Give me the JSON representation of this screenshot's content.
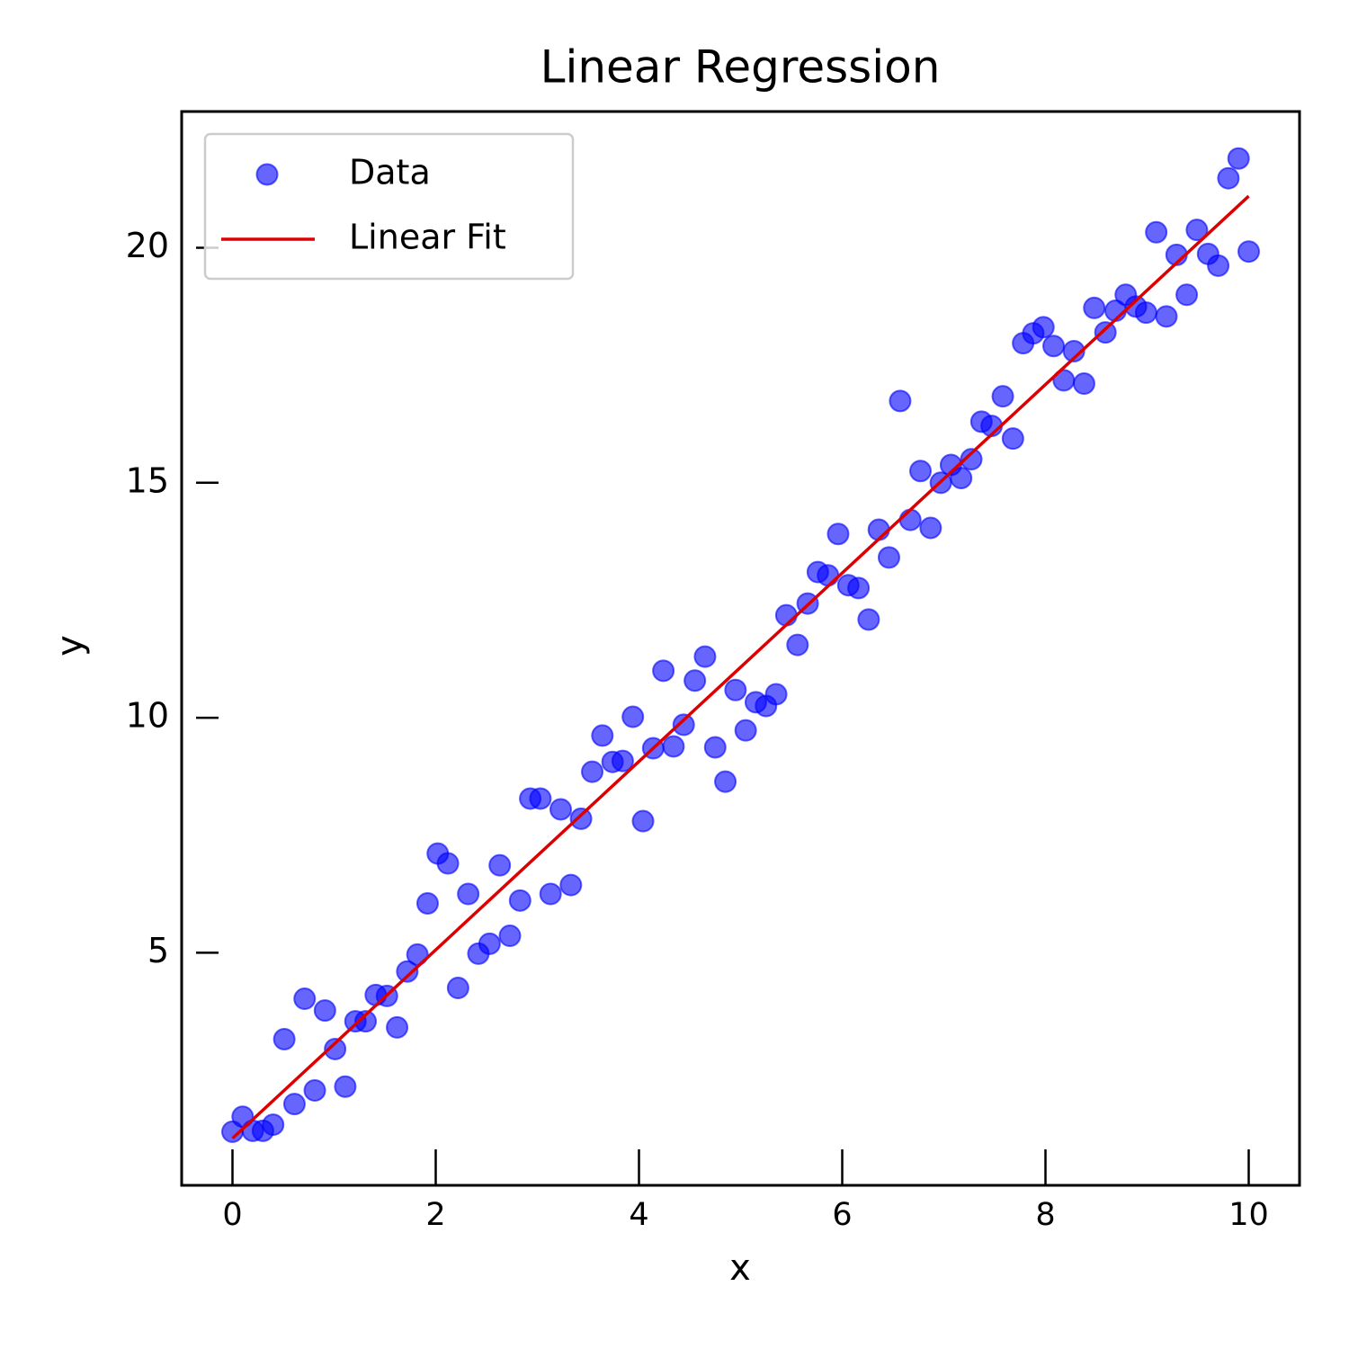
{
  "chart_data": {
    "type": "scatter",
    "title": "Linear Regression",
    "x_label": "x",
    "y_label": "y",
    "xlim": [
      -0.5,
      10.5
    ],
    "ylim": [
      0.05,
      22.9
    ],
    "xticks": [
      0,
      2,
      4,
      6,
      8,
      10
    ],
    "yticks": [
      5,
      10,
      15,
      20
    ],
    "legend": "upper left",
    "grid": false,
    "series": [
      {
        "name": "Data",
        "type": "scatter",
        "color": "#0000ff",
        "x": [
          0,
          0.1,
          0.2,
          0.3,
          0.4,
          0.51,
          0.61,
          0.71,
          0.81,
          0.91,
          1.01,
          1.11,
          1.21,
          1.31,
          1.41,
          1.52,
          1.62,
          1.72,
          1.82,
          1.92,
          2.02,
          2.12,
          2.22,
          2.32,
          2.42,
          2.53,
          2.63,
          2.73,
          2.83,
          2.93,
          3.03,
          3.13,
          3.23,
          3.33,
          3.43,
          3.54,
          3.64,
          3.74,
          3.84,
          3.94,
          4.04,
          4.14,
          4.24,
          4.34,
          4.44,
          4.55,
          4.65,
          4.75,
          4.85,
          4.95,
          5.05,
          5.15,
          5.25,
          5.35,
          5.45,
          5.56,
          5.66,
          5.76,
          5.86,
          5.96,
          6.06,
          6.16,
          6.26,
          6.36,
          6.46,
          6.57,
          6.67,
          6.77,
          6.87,
          6.97,
          7.07,
          7.17,
          7.27,
          7.37,
          7.47,
          7.58,
          7.68,
          7.78,
          7.88,
          7.98,
          8.08,
          8.18,
          8.28,
          8.38,
          8.48,
          8.59,
          8.69,
          8.79,
          8.89,
          8.99,
          9.09,
          9.19,
          9.29,
          9.39,
          9.49,
          9.6,
          9.7,
          9.8,
          9.9,
          10
        ],
        "values": [
          1.19,
          1.51,
          1.21,
          1.21,
          1.34,
          3.16,
          1.78,
          4.02,
          2.07,
          3.77,
          2.95,
          2.15,
          3.54,
          3.54,
          4.1,
          4.08,
          3.41,
          4.6,
          4.96,
          6.05,
          7.11,
          6.9,
          4.25,
          6.25,
          4.98,
          5.19,
          6.86,
          5.36,
          6.11,
          8.28,
          8.28,
          6.25,
          8.05,
          6.44,
          7.85,
          8.85,
          9.62,
          9.06,
          9.08,
          10.02,
          7.8,
          9.35,
          11.0,
          9.39,
          9.85,
          10.79,
          11.3,
          9.37,
          8.64,
          10.59,
          9.73,
          10.33,
          10.25,
          10.5,
          12.18,
          11.55,
          12.43,
          13.1,
          13.03,
          13.91,
          12.82,
          12.76,
          12.09,
          14.0,
          13.41,
          16.74,
          14.21,
          15.25,
          14.04,
          15.0,
          15.38,
          15.1,
          15.5,
          16.3,
          16.21,
          16.84,
          15.94,
          17.97,
          18.18,
          18.31,
          17.91,
          17.18,
          17.8,
          17.11,
          18.72,
          18.2,
          18.66,
          19.0,
          18.75,
          18.62,
          20.33,
          18.54,
          19.85,
          19.0,
          20.38,
          19.87,
          19.62,
          21.48,
          21.9,
          19.92
        ]
      },
      {
        "name": "Linear Fit",
        "type": "line",
        "color": "#dd0000",
        "x": [
          0,
          10
        ],
        "values": [
          1.05,
          21.1
        ]
      }
    ]
  }
}
